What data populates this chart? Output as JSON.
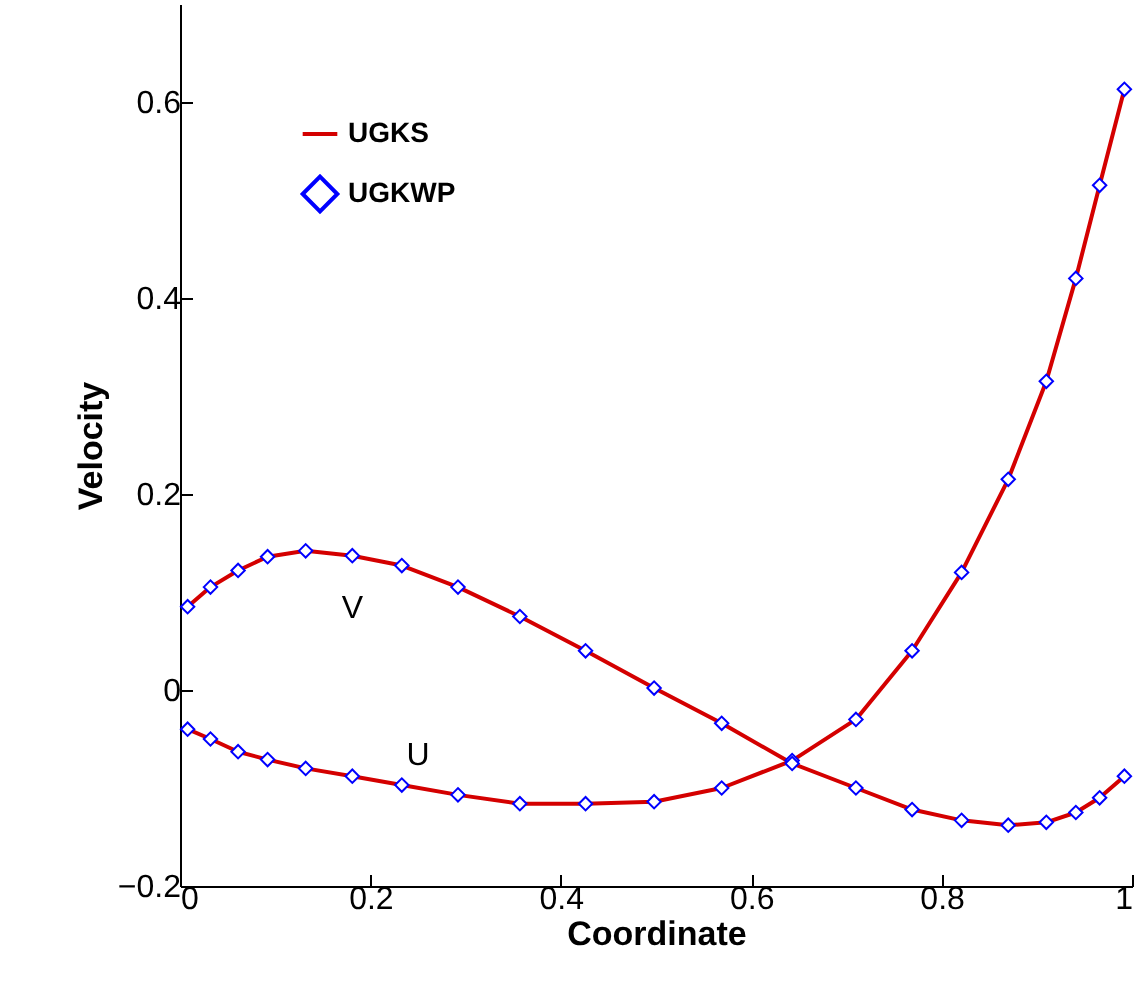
{
  "chart_data": {
    "type": "line",
    "xlabel": "Coordinate",
    "ylabel": "Velocity",
    "xlim": [
      0,
      1
    ],
    "ylim": [
      -0.2,
      0.7
    ],
    "xticks": [
      0,
      0.2,
      0.4,
      0.6,
      0.8,
      1
    ],
    "yticks": [
      -0.2,
      0,
      0.2,
      0.4,
      0.6
    ],
    "grid": false,
    "legend": "top left",
    "annotations": [
      "U",
      "V"
    ],
    "series": [
      {
        "name": "UGKS",
        "type": "line",
        "color": "#d40000",
        "line_style": "solid",
        "x": [
          0.008,
          0.032,
          0.061,
          0.092,
          0.132,
          0.181,
          0.233,
          0.292,
          0.357,
          0.426,
          0.498,
          0.569,
          0.643,
          0.71,
          0.769,
          0.821,
          0.87,
          0.91,
          0.941,
          0.966,
          0.992
        ],
        "values": [
          -0.04,
          -0.05,
          -0.063,
          -0.071,
          -0.08,
          -0.088,
          -0.097,
          -0.107,
          -0.116,
          -0.116,
          -0.114,
          -0.1,
          -0.072,
          -0.03,
          0.04,
          0.12,
          0.215,
          0.315,
          0.42,
          0.515,
          0.613
        ]
      },
      {
        "type": "line",
        "color": "#d40000",
        "line_style": "solid",
        "x": [
          0.008,
          0.032,
          0.061,
          0.092,
          0.132,
          0.181,
          0.233,
          0.292,
          0.357,
          0.426,
          0.498,
          0.569,
          0.643,
          0.71,
          0.769,
          0.821,
          0.87,
          0.91,
          0.941,
          0.966,
          0.992
        ],
        "values": [
          0.085,
          0.105,
          0.122,
          0.136,
          0.142,
          0.137,
          0.127,
          0.105,
          0.075,
          0.04,
          0.002,
          -0.034,
          -0.075,
          -0.1,
          -0.122,
          -0.133,
          -0.138,
          -0.135,
          -0.125,
          -0.11,
          -0.088
        ]
      },
      {
        "name": "UGKWP",
        "type": "scatter",
        "marker": "diamond",
        "color": "#0000ff",
        "x": [
          0.008,
          0.032,
          0.061,
          0.092,
          0.132,
          0.181,
          0.233,
          0.292,
          0.357,
          0.426,
          0.498,
          0.569,
          0.643,
          0.71,
          0.769,
          0.821,
          0.87,
          0.91,
          0.941,
          0.966,
          0.992
        ],
        "values": [
          -0.04,
          -0.05,
          -0.063,
          -0.071,
          -0.08,
          -0.088,
          -0.097,
          -0.107,
          -0.116,
          -0.116,
          -0.114,
          -0.1,
          -0.072,
          -0.03,
          0.04,
          0.12,
          0.215,
          0.315,
          0.42,
          0.515,
          0.613
        ]
      },
      {
        "type": "scatter",
        "marker": "diamond",
        "color": "#0000ff",
        "x": [
          0.008,
          0.032,
          0.061,
          0.092,
          0.132,
          0.181,
          0.233,
          0.292,
          0.357,
          0.426,
          0.498,
          0.569,
          0.643,
          0.71,
          0.769,
          0.821,
          0.87,
          0.91,
          0.941,
          0.966,
          0.992
        ],
        "values": [
          0.085,
          0.105,
          0.122,
          0.136,
          0.142,
          0.137,
          0.127,
          0.105,
          0.075,
          0.04,
          0.002,
          -0.034,
          -0.075,
          -0.1,
          -0.122,
          -0.133,
          -0.138,
          -0.135,
          -0.125,
          -0.11,
          -0.088
        ]
      }
    ]
  }
}
